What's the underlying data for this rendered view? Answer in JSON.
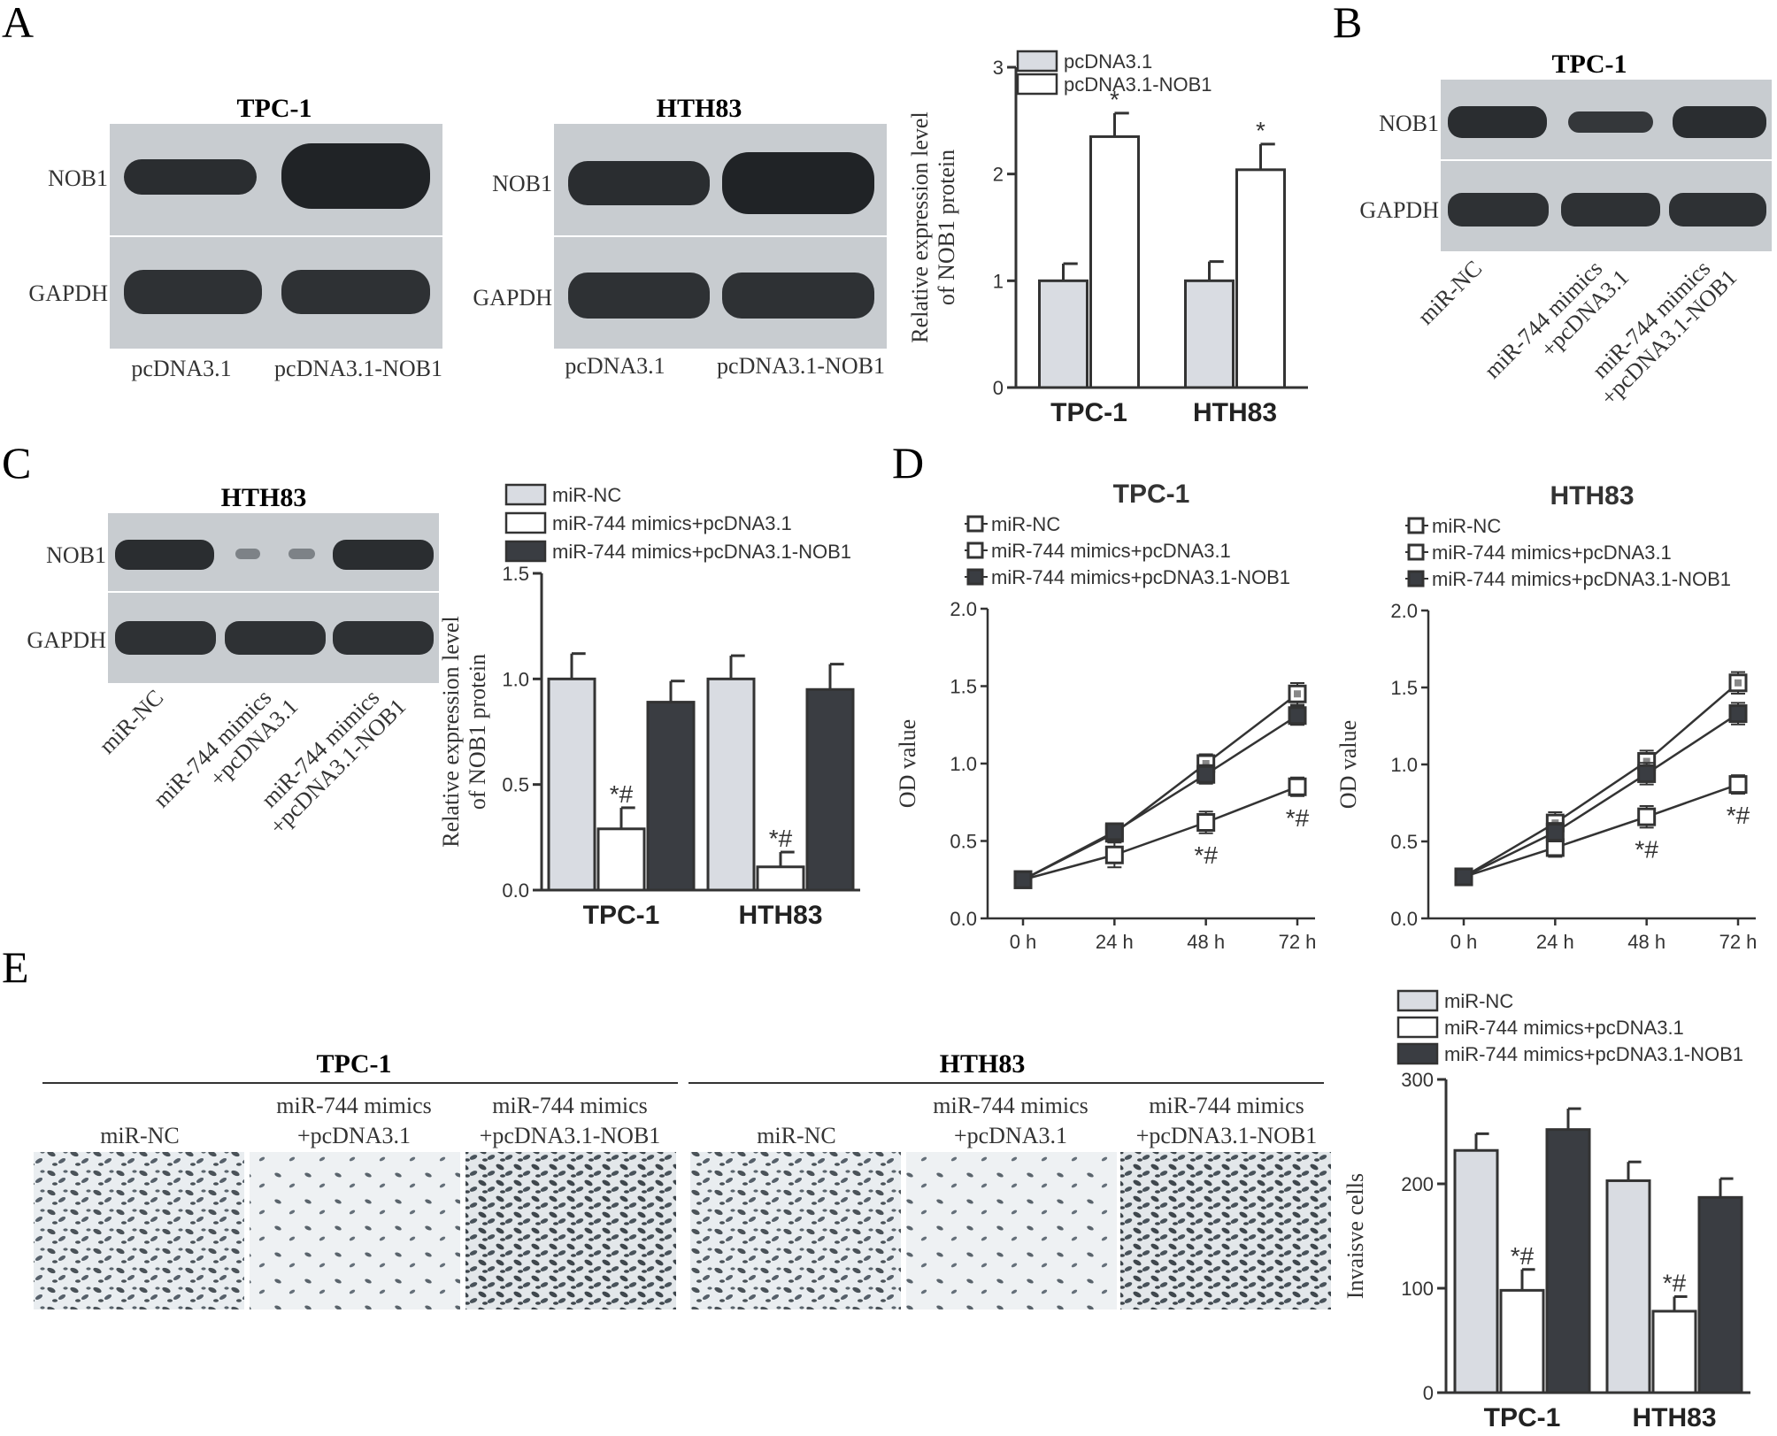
{
  "panels": {
    "A": {
      "letter": "A",
      "blot_tpc": {
        "title": "TPC-1",
        "row1": "NOB1",
        "row2": "GAPDH",
        "lane1": "pcDNA3.1",
        "lane2": "pcDNA3.1-NOB1"
      },
      "blot_hth": {
        "title": "HTH83",
        "row1": "NOB1",
        "row2": "GAPDH",
        "lane1": "pcDNA3.1",
        "lane2": "pcDNA3.1-NOB1"
      }
    },
    "B": {
      "letter": "B",
      "blot": {
        "title": "TPC-1",
        "row1": "NOB1",
        "row2": "GAPDH",
        "lanes": [
          [
            "miR-NC"
          ],
          [
            "miR-744 mimics",
            "+pcDNA3.1"
          ],
          [
            "miR-744 mimics",
            "+pcDNA3.1-NOB1"
          ]
        ]
      }
    },
    "C": {
      "letter": "C",
      "blot": {
        "title": "HTH83",
        "row1": "NOB1",
        "row2": "GAPDH",
        "lanes": [
          [
            "miR-NC"
          ],
          [
            "miR-744 mimics",
            "+pcDNA3.1"
          ],
          [
            "miR-744 mimics",
            "+pcDNA3.1-NOB1"
          ]
        ]
      }
    },
    "D": {
      "letter": "D"
    },
    "E": {
      "letter": "E",
      "groups": [
        {
          "title": "TPC-1",
          "lanes": [
            [
              "miR-NC"
            ],
            [
              "miR-744 mimics",
              "+pcDNA3.1"
            ],
            [
              "miR-744 mimics",
              "+pcDNA3.1-NOB1"
            ]
          ]
        },
        {
          "title": "HTH83",
          "lanes": [
            [
              "miR-NC"
            ],
            [
              "miR-744 mimics",
              "+pcDNA3.1"
            ],
            [
              "miR-744 mimics",
              "+pcDNA3.1-NOB1"
            ]
          ]
        }
      ]
    }
  },
  "colors": {
    "gray_bar": "#d9dce2",
    "white_bar": "#ffffff",
    "dark_bar": "#3a3d42",
    "axis": "#333333",
    "blot_bg": "#c9cdd1",
    "band": "#2a2d30"
  },
  "chart_data": [
    {
      "id": "A_bar",
      "type": "bar",
      "categories": [
        "TPC-1",
        "HTH83"
      ],
      "series": [
        {
          "name": "pcDNA3.1",
          "values": [
            1.0,
            1.0
          ],
          "errors": [
            0.16,
            0.18
          ]
        },
        {
          "name": "pcDNA3.1-NOB1",
          "values": [
            2.35,
            2.04
          ],
          "errors": [
            0.22,
            0.24
          ]
        }
      ],
      "significance": [
        [
          "",
          "*"
        ],
        [
          "",
          "*"
        ]
      ],
      "ylabel": [
        "Relative expression level",
        "of NOB1 protein"
      ],
      "ylim": [
        0,
        3
      ],
      "yticks": [
        0,
        1,
        2,
        3
      ],
      "legend": "top"
    },
    {
      "id": "C_bar",
      "type": "bar",
      "categories": [
        "TPC-1",
        "HTH83"
      ],
      "series": [
        {
          "name": "miR-NC",
          "values": [
            1.0,
            1.0
          ],
          "errors": [
            0.12,
            0.11
          ]
        },
        {
          "name": "miR-744 mimics+pcDNA3.1",
          "values": [
            0.29,
            0.11
          ],
          "errors": [
            0.1,
            0.07
          ]
        },
        {
          "name": "miR-744 mimics+pcDNA3.1-NOB1",
          "values": [
            0.89,
            0.95
          ],
          "errors": [
            0.1,
            0.12
          ]
        }
      ],
      "significance": [
        [
          "",
          "*#",
          ""
        ],
        [
          "",
          "*#",
          ""
        ]
      ],
      "ylabel": [
        "Relative expression level",
        "of NOB1 protein"
      ],
      "ylim": [
        0,
        1.5
      ],
      "yticks": [
        "0.0",
        "0.5",
        "1.0",
        "1.5"
      ],
      "legend": "top"
    },
    {
      "id": "D_tpc",
      "type": "line",
      "title": "TPC-1",
      "x": [
        "0 h",
        "24 h",
        "48 h",
        "72 h"
      ],
      "series": [
        {
          "name": "miR-NC",
          "values": [
            0.25,
            0.55,
            1.0,
            1.45
          ],
          "errors": [
            0.04,
            0.05,
            0.06,
            0.07
          ]
        },
        {
          "name": "miR-744 mimics+pcDNA3.1",
          "values": [
            0.25,
            0.41,
            0.62,
            0.85
          ],
          "errors": [
            0.04,
            0.08,
            0.07,
            0.06
          ]
        },
        {
          "name": "miR-744 mimics+pcDNA3.1-NOB1",
          "values": [
            0.25,
            0.56,
            0.93,
            1.31
          ],
          "errors": [
            0.04,
            0.05,
            0.06,
            0.06
          ]
        }
      ],
      "significance": [
        "",
        "",
        "*#",
        "*#"
      ],
      "ylabel": "OD value",
      "ylim": [
        0,
        2.0
      ],
      "yticks": [
        "0.0",
        "0.5",
        "1.0",
        "1.5",
        "2.0"
      ]
    },
    {
      "id": "D_hth",
      "type": "line",
      "title": "HTH83",
      "x": [
        "0 h",
        "24 h",
        "48 h",
        "72 h"
      ],
      "series": [
        {
          "name": "miR-NC",
          "values": [
            0.27,
            0.62,
            1.02,
            1.53
          ],
          "errors": [
            0.04,
            0.07,
            0.07,
            0.07
          ]
        },
        {
          "name": "miR-744 mimics+pcDNA3.1",
          "values": [
            0.27,
            0.46,
            0.66,
            0.87
          ],
          "errors": [
            0.04,
            0.06,
            0.07,
            0.06
          ]
        },
        {
          "name": "miR-744 mimics+pcDNA3.1-NOB1",
          "values": [
            0.27,
            0.56,
            0.94,
            1.33
          ],
          "errors": [
            0.04,
            0.06,
            0.07,
            0.07
          ]
        }
      ],
      "significance": [
        "",
        "",
        "*#",
        "*#"
      ],
      "ylabel": "OD value",
      "ylim": [
        0,
        2.0
      ],
      "yticks": [
        "0.0",
        "0.5",
        "1.0",
        "1.5",
        "2.0"
      ]
    },
    {
      "id": "E_bar",
      "type": "bar",
      "categories": [
        "TPC-1",
        "HTH83"
      ],
      "series": [
        {
          "name": "miR-NC",
          "values": [
            232,
            203
          ],
          "errors": [
            16,
            18
          ]
        },
        {
          "name": "miR-744 mimics+pcDNA3.1",
          "values": [
            98,
            78
          ],
          "errors": [
            20,
            14
          ]
        },
        {
          "name": "miR-744 mimics+pcDNA3.1-NOB1",
          "values": [
            252,
            187
          ],
          "errors": [
            20,
            18
          ]
        }
      ],
      "significance": [
        [
          "",
          "*#",
          ""
        ],
        [
          "",
          "*#",
          ""
        ]
      ],
      "ylabel": "Invaisve cells",
      "ylim": [
        0,
        300
      ],
      "yticks": [
        "0",
        "100",
        "200",
        "300"
      ],
      "legend": "top"
    }
  ]
}
